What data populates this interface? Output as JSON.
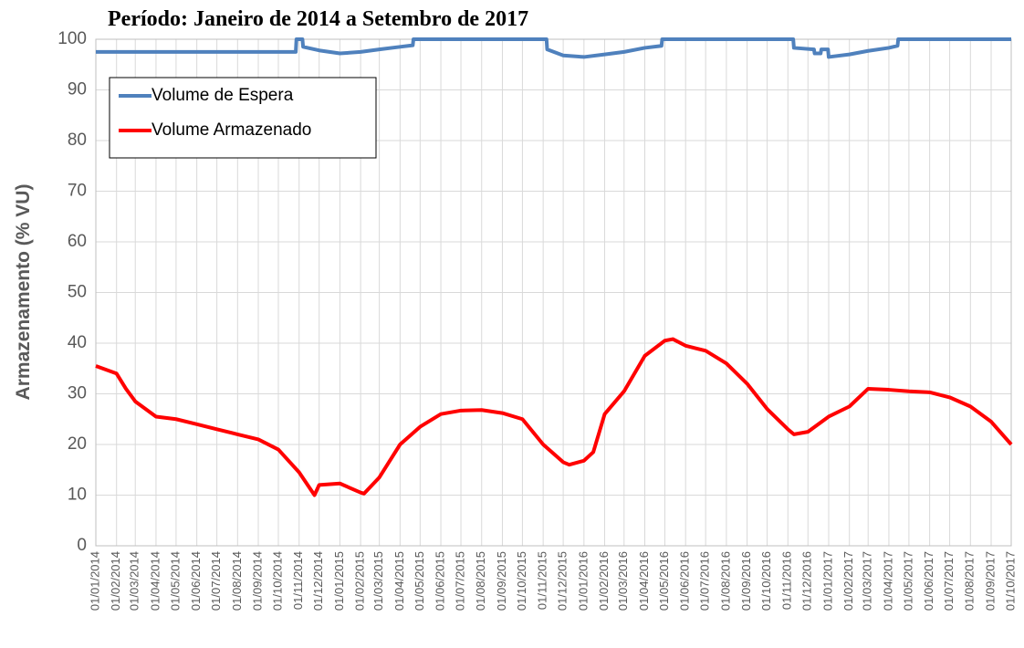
{
  "chart_data": {
    "type": "line",
    "title": "Período: Janeiro de 2014 a Setembro de 2017",
    "y_label": "Armazenamento (% VU)",
    "xlim": [
      "01/01/2014",
      "01/10/2017"
    ],
    "xticks": [
      "01/01/2014",
      "01/02/2014",
      "01/03/2014",
      "01/04/2014",
      "01/05/2014",
      "01/06/2014",
      "01/07/2014",
      "01/08/2014",
      "01/09/2014",
      "01/10/2014",
      "01/11/2014",
      "01/12/2014",
      "01/01/2015",
      "01/02/2015",
      "01/03/2015",
      "01/04/2015",
      "01/05/2015",
      "01/06/2015",
      "01/07/2015",
      "01/08/2015",
      "01/09/2015",
      "01/10/2015",
      "01/11/2015",
      "01/12/2015",
      "01/01/2016",
      "01/02/2016",
      "01/03/2016",
      "01/04/2016",
      "01/05/2016",
      "01/06/2016",
      "01/07/2016",
      "01/08/2016",
      "01/09/2016",
      "01/10/2016",
      "01/11/2016",
      "01/12/2016",
      "01/01/2017",
      "01/02/2017",
      "01/03/2017",
      "01/04/2017",
      "01/05/2017",
      "01/06/2017",
      "01/07/2017",
      "01/08/2017",
      "01/09/2017",
      "01/10/2017"
    ],
    "ylim": [
      0,
      100
    ],
    "yticks": [
      0,
      10,
      20,
      30,
      40,
      50,
      60,
      70,
      80,
      90,
      100
    ],
    "grid": true,
    "legend": "upper left",
    "series": [
      {
        "name": "Volume de Espera",
        "color": "#4f81bd",
        "x": [
          "01/01/2014",
          "27/10/2014",
          "28/10/2014",
          "06/11/2014",
          "07/11/2014",
          "01/12/2014",
          "01/01/2015",
          "01/02/2015",
          "01/03/2015",
          "01/04/2015",
          "20/04/2015",
          "21/04/2015",
          "06/11/2015",
          "07/11/2015",
          "01/12/2015",
          "01/01/2016",
          "01/02/2016",
          "01/03/2016",
          "01/04/2016",
          "26/04/2016",
          "27/04/2016",
          "09/11/2016",
          "10/11/2016",
          "10/12/2016",
          "11/12/2016",
          "20/12/2016",
          "21/12/2016",
          "31/12/2016",
          "01/01/2017",
          "01/02/2017",
          "01/03/2017",
          "01/04/2017",
          "14/04/2017",
          "15/04/2017",
          "01/10/2017"
        ],
        "values": [
          97.5,
          97.5,
          100,
          100,
          98.5,
          97.8,
          97.2,
          97.5,
          98,
          98.5,
          98.8,
          100,
          100,
          98,
          96.8,
          96.5,
          97,
          97.5,
          98.3,
          98.7,
          100,
          100,
          98.3,
          98,
          97.2,
          97.2,
          98,
          98,
          96.5,
          97,
          97.7,
          98.3,
          98.7,
          100,
          100
        ]
      },
      {
        "name": "Volume Armazenado",
        "color": "#ff0000",
        "x": [
          "01/01/2014",
          "01/02/2014",
          "15/02/2014",
          "01/03/2014",
          "01/04/2014",
          "01/05/2014",
          "01/06/2014",
          "01/07/2014",
          "01/08/2014",
          "01/09/2014",
          "01/10/2014",
          "01/11/2014",
          "24/11/2014",
          "01/12/2014",
          "01/01/2015",
          "01/02/2015",
          "06/02/2015",
          "01/03/2015",
          "01/04/2015",
          "01/05/2015",
          "01/06/2015",
          "01/07/2015",
          "01/08/2015",
          "01/09/2015",
          "01/10/2015",
          "01/11/2015",
          "01/12/2015",
          "10/12/2015",
          "01/01/2016",
          "15/01/2016",
          "01/02/2016",
          "01/03/2016",
          "01/04/2016",
          "01/05/2016",
          "13/05/2016",
          "01/06/2016",
          "01/07/2016",
          "01/08/2016",
          "01/09/2016",
          "01/10/2016",
          "01/11/2016",
          "10/11/2016",
          "01/12/2016",
          "01/01/2017",
          "01/02/2017",
          "01/03/2017",
          "01/04/2017",
          "01/05/2017",
          "01/06/2017",
          "01/07/2017",
          "01/08/2017",
          "01/09/2017",
          "01/10/2017"
        ],
        "values": [
          35.5,
          34,
          31,
          28.5,
          25.5,
          25,
          24,
          23,
          22,
          21,
          19,
          14.5,
          10,
          12,
          12.3,
          10.5,
          10.3,
          13.5,
          20,
          23.5,
          26,
          26.7,
          26.8,
          26.2,
          25,
          20,
          16.5,
          16,
          16.8,
          18.5,
          26,
          30.5,
          37.5,
          40.5,
          40.8,
          39.5,
          38.5,
          36,
          32,
          27,
          23,
          22,
          22.5,
          25.5,
          27.5,
          31,
          30.8,
          30.5,
          30.3,
          29.3,
          27.5,
          24.5,
          20
        ]
      }
    ]
  }
}
